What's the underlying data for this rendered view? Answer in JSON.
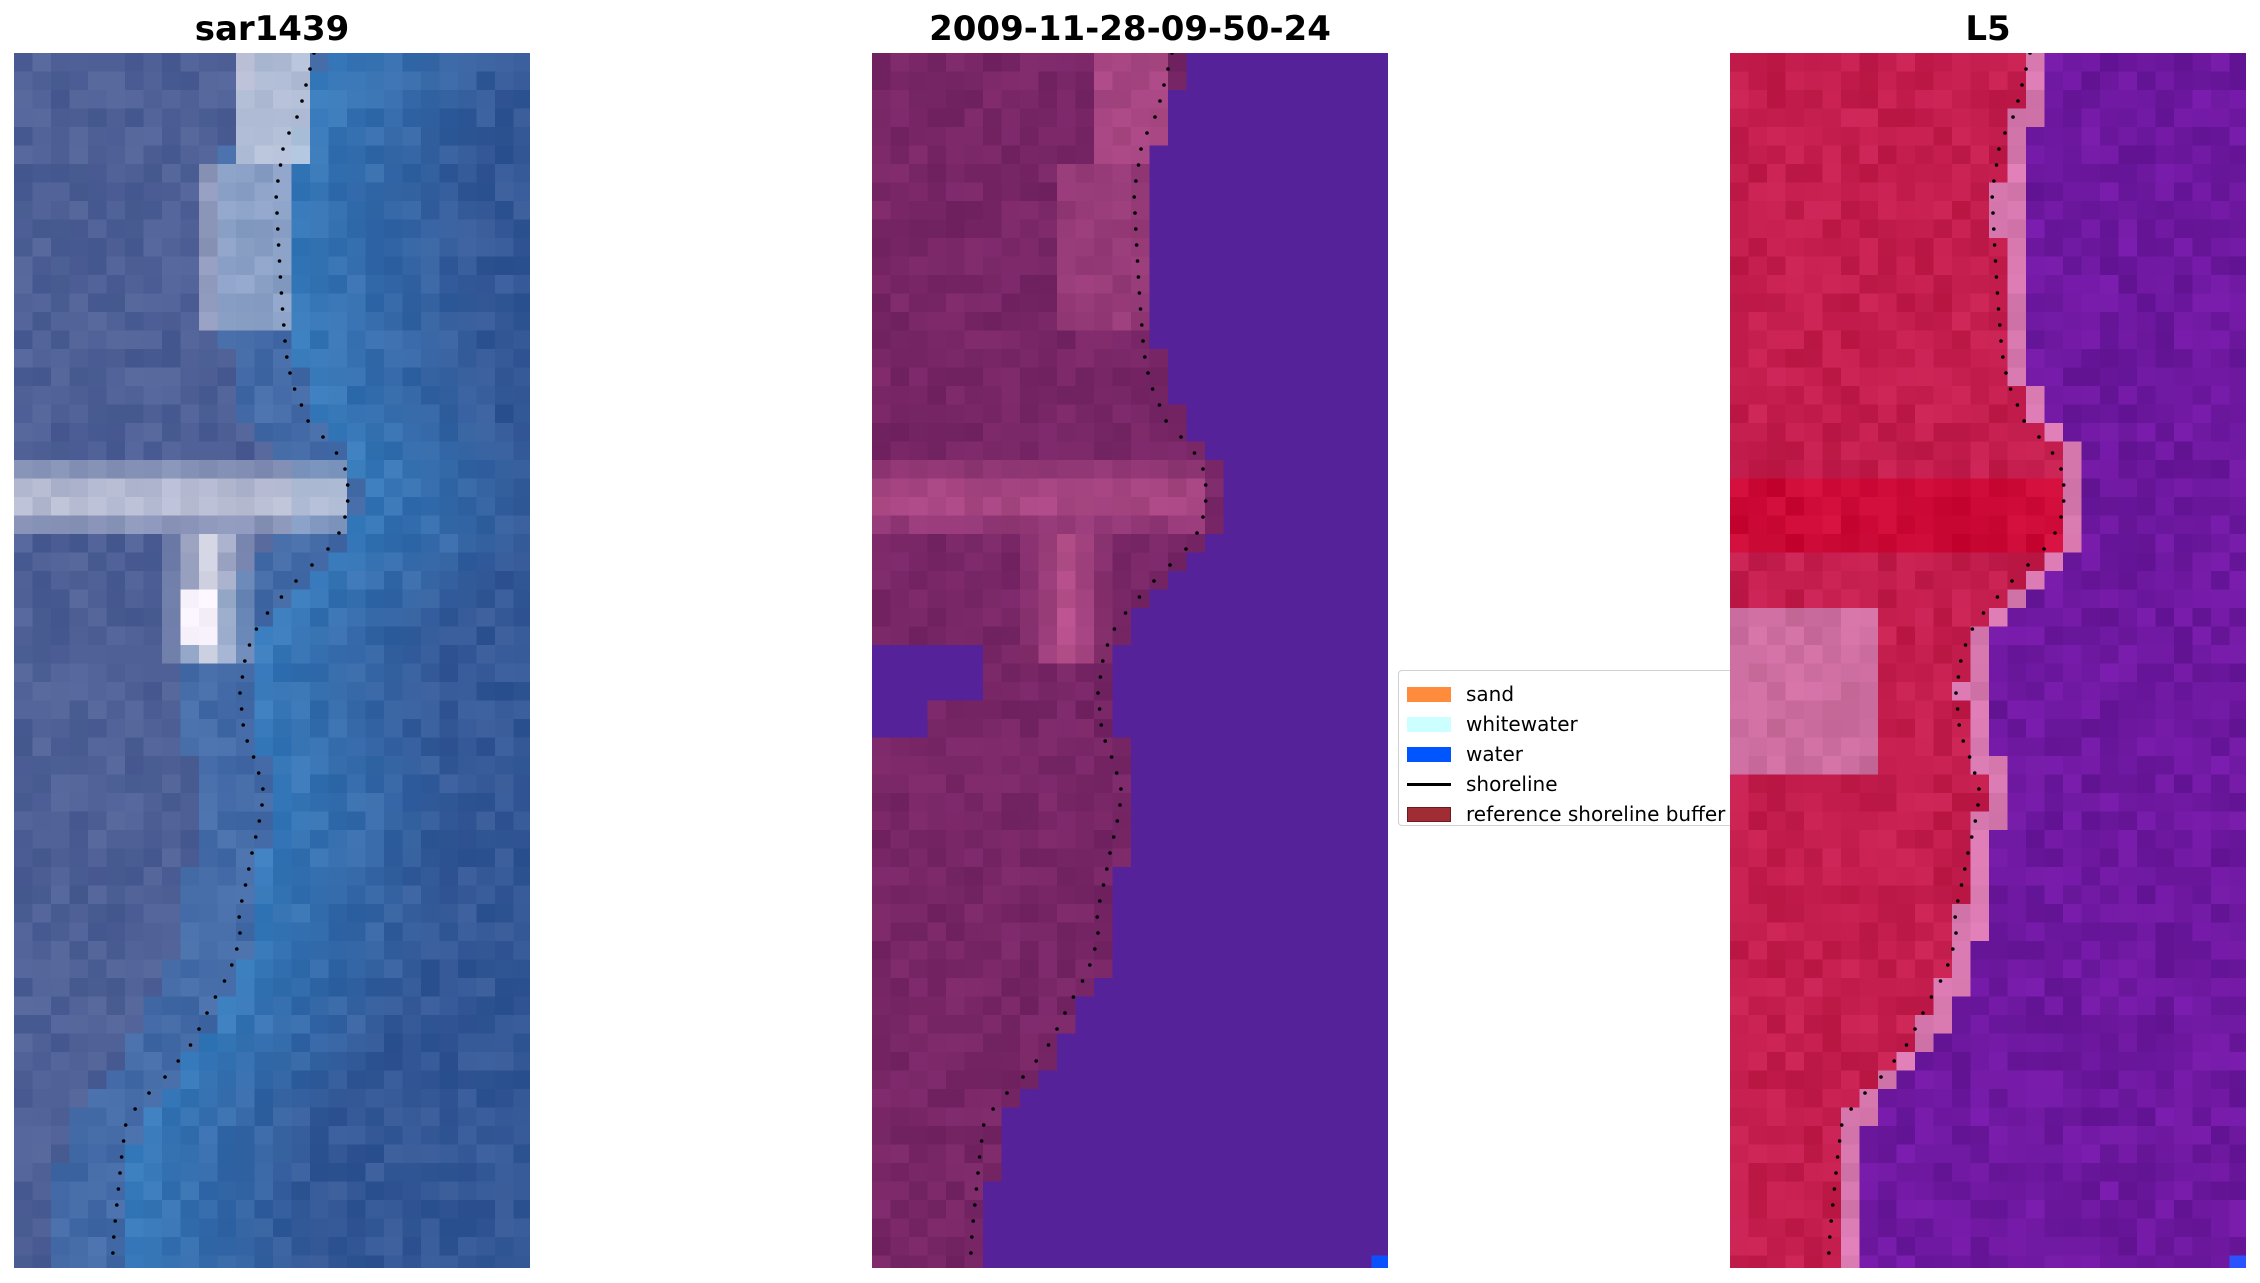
{
  "panels": [
    {
      "title": "sar1439"
    },
    {
      "title": "2009-11-28-09-50-24"
    },
    {
      "title": "L5"
    }
  ],
  "legend": {
    "items": [
      {
        "label": "sand",
        "kind": "patch",
        "color": "#ff8b3d"
      },
      {
        "label": "whitewater",
        "kind": "patch",
        "color": "#ccffff"
      },
      {
        "label": "water",
        "kind": "patch",
        "color": "#0055ff"
      },
      {
        "label": "shoreline",
        "kind": "line",
        "color": "#000000"
      },
      {
        "label": "reference shoreline buffer",
        "kind": "patch",
        "color": "#a02c34"
      }
    ]
  },
  "colors": {
    "rgb_water": "#3a6fb0",
    "rgb_land": "#6f7fa6",
    "classified_water": "#55229a",
    "classified_land": "#7a2a68",
    "classified_land_light": "#b04c8c",
    "ndwi_land": "#c4224e",
    "ndwi_water": "#7018a0"
  }
}
